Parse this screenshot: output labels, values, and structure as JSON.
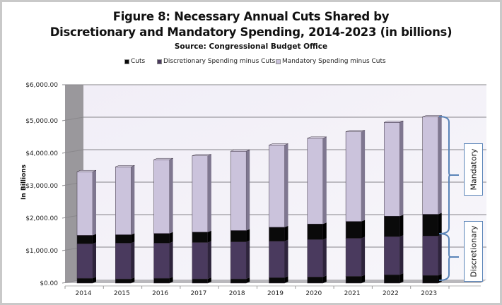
{
  "chart_data": {
    "type": "bar",
    "stacked": true,
    "style": "3d-column",
    "title": "Figure 8: Necessary Annual Cuts Shared by",
    "title_line2": "Discretionary and Mandatory Spending, 2014-2023 (in billions)",
    "subtitle": "Source: Congressional Budget Office",
    "xlabel": "",
    "ylabel": "In Billions",
    "ylim": [
      0,
      6000
    ],
    "yticks": [
      0,
      1000,
      2000,
      3000,
      4000,
      5000,
      6000
    ],
    "ytick_labels": [
      "$0.00",
      "$1,000.00",
      "$2,000.00",
      "$3,000.00",
      "$4,000.00",
      "$5,000.00",
      "$6,000.00"
    ],
    "grid": true,
    "legend_position": "top",
    "categories": [
      "2014",
      "2015",
      "2016",
      "2017",
      "2018",
      "2019",
      "2020",
      "2021",
      "2022",
      "2023"
    ],
    "legend": [
      {
        "name": "Cuts",
        "color": "#0a0a0a"
      },
      {
        "name": "Discretionary Spending minus Cuts",
        "color": "#4a3a5e"
      },
      {
        "name": "Mandatory Spending minus Cuts",
        "color": "#cbc3dc"
      }
    ],
    "series": [
      {
        "name": "Cuts (discretionary share)",
        "legend": "Cuts",
        "color": "#0a0a0a",
        "values": [
          150,
          130,
          150,
          130,
          130,
          170,
          190,
          210,
          260,
          240
        ]
      },
      {
        "name": "Discretionary Spending minus Cuts",
        "color": "#4a3a5e",
        "values": [
          1060,
          1100,
          1080,
          1120,
          1140,
          1120,
          1150,
          1170,
          1170,
          1210
        ]
      },
      {
        "name": "Cuts (mandatory share)",
        "legend": "Cuts",
        "color": "#0a0a0a",
        "values": [
          260,
          260,
          300,
          320,
          350,
          430,
          480,
          520,
          630,
          670
        ]
      },
      {
        "name": "Mandatory Spending minus Cuts",
        "color": "#cbc3dc",
        "values": [
          1960,
          2090,
          2270,
          2350,
          2440,
          2530,
          2640,
          2760,
          2890,
          3000
        ]
      }
    ],
    "annotations": [
      {
        "label": "Mandatory",
        "spans": "2023 mandatory portion"
      },
      {
        "label": "Discretionary",
        "spans": "2023 discretionary portion"
      }
    ]
  }
}
